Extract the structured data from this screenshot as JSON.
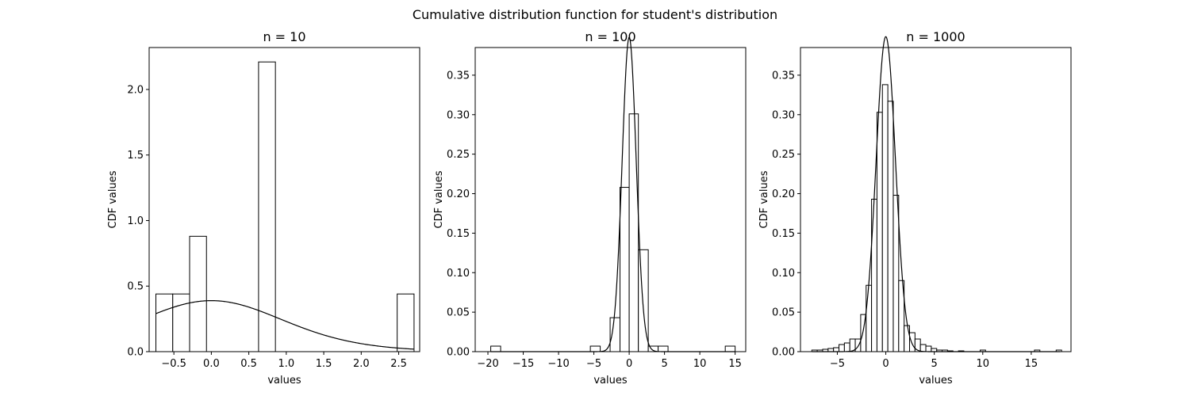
{
  "figure": {
    "title": "Cumulative distribution function for student's distribution"
  },
  "chart_data": [
    {
      "type": "bar",
      "title": "n = 10",
      "xlabel": "values",
      "ylabel": "CDF values",
      "xlim": [
        -0.83,
        2.78
      ],
      "ylim": [
        0,
        2.32
      ],
      "xticks": [
        -0.5,
        0.0,
        0.5,
        1.0,
        1.5,
        2.0,
        2.5
      ],
      "xtick_labels": [
        "−0.5",
        "0.0",
        "0.5",
        "1.0",
        "1.5",
        "2.0",
        "2.5"
      ],
      "yticks": [
        0.0,
        0.5,
        1.0,
        1.5,
        2.0
      ],
      "ytick_labels": [
        "0.0",
        "0.5",
        "1.0",
        "1.5",
        "2.0"
      ],
      "bins": [
        {
          "x0": -0.74,
          "x1": -0.515,
          "height": 0.44
        },
        {
          "x0": -0.515,
          "x1": -0.29,
          "height": 0.44
        },
        {
          "x0": -0.29,
          "x1": -0.065,
          "height": 0.88
        },
        {
          "x0": 0.63,
          "x1": 0.855,
          "height": 2.21
        },
        {
          "x0": 2.48,
          "x1": 2.705,
          "height": 0.44
        }
      ],
      "curve": {
        "dist": "student_t",
        "df": 10,
        "x_range": [
          -0.74,
          2.7
        ]
      }
    },
    {
      "type": "bar",
      "title": "n = 100",
      "xlabel": "values",
      "ylabel": "CDF values",
      "xlim": [
        -21.8,
        16.5
      ],
      "ylim": [
        0,
        0.385
      ],
      "xticks": [
        -20,
        -15,
        -10,
        -5,
        0,
        5,
        10,
        15
      ],
      "xtick_labels": [
        "−20",
        "−15",
        "−10",
        "−5",
        "0",
        "5",
        "10",
        "15"
      ],
      "yticks": [
        0.0,
        0.05,
        0.1,
        0.15,
        0.2,
        0.25,
        0.3,
        0.35
      ],
      "ytick_labels": [
        "0.00",
        "0.05",
        "0.10",
        "0.15",
        "0.20",
        "0.25",
        "0.30",
        "0.35"
      ],
      "bins": [
        {
          "x0": -19.6,
          "x1": -18.2,
          "height": 0.007
        },
        {
          "x0": -5.5,
          "x1": -4.1,
          "height": 0.007
        },
        {
          "x0": -4.1,
          "x1": -2.7,
          "height": 0.0
        },
        {
          "x0": -2.7,
          "x1": -1.3,
          "height": 0.043
        },
        {
          "x0": -1.3,
          "x1": 0.0,
          "height": 0.208
        },
        {
          "x0": 0.0,
          "x1": 1.3,
          "height": 0.301
        },
        {
          "x0": 1.3,
          "x1": 2.7,
          "height": 0.129
        },
        {
          "x0": 2.7,
          "x1": 4.1,
          "height": 0.007
        },
        {
          "x0": 4.1,
          "x1": 5.5,
          "height": 0.007
        },
        {
          "x0": 13.6,
          "x1": 15.0,
          "height": 0.007
        }
      ],
      "curve": {
        "dist": "student_t",
        "df": 100,
        "x_range": [
          -19.6,
          15.0
        ]
      }
    },
    {
      "type": "bar",
      "title": "n = 1000",
      "xlabel": "values",
      "ylabel": "CDF values",
      "xlim": [
        -8.8,
        19.1
      ],
      "ylim": [
        0,
        0.385
      ],
      "xticks": [
        -5,
        0,
        5,
        10,
        15
      ],
      "xtick_labels": [
        "−5",
        "0",
        "5",
        "10",
        "15"
      ],
      "yticks": [
        0.0,
        0.05,
        0.1,
        0.15,
        0.2,
        0.25,
        0.3,
        0.35
      ],
      "ytick_labels": [
        "0.00",
        "0.05",
        "0.10",
        "0.15",
        "0.20",
        "0.25",
        "0.30",
        "0.35"
      ],
      "bins": [
        {
          "x0": -7.63,
          "x1": -7.07,
          "height": 0.002
        },
        {
          "x0": -7.07,
          "x1": -6.51,
          "height": 0.002
        },
        {
          "x0": -6.51,
          "x1": -5.95,
          "height": 0.003
        },
        {
          "x0": -5.95,
          "x1": -5.39,
          "height": 0.004
        },
        {
          "x0": -5.39,
          "x1": -4.83,
          "height": 0.005
        },
        {
          "x0": -4.83,
          "x1": -4.27,
          "height": 0.009
        },
        {
          "x0": -4.27,
          "x1": -3.71,
          "height": 0.011
        },
        {
          "x0": -3.71,
          "x1": -3.15,
          "height": 0.016
        },
        {
          "x0": -3.15,
          "x1": -2.59,
          "height": 0.016
        },
        {
          "x0": -2.59,
          "x1": -2.03,
          "height": 0.047
        },
        {
          "x0": -2.03,
          "x1": -1.47,
          "height": 0.084
        },
        {
          "x0": -1.47,
          "x1": -0.91,
          "height": 0.193
        },
        {
          "x0": -0.91,
          "x1": -0.35,
          "height": 0.303
        },
        {
          "x0": -0.35,
          "x1": 0.21,
          "height": 0.338
        },
        {
          "x0": 0.21,
          "x1": 0.77,
          "height": 0.317
        },
        {
          "x0": 0.77,
          "x1": 1.33,
          "height": 0.198
        },
        {
          "x0": 1.33,
          "x1": 1.89,
          "height": 0.09
        },
        {
          "x0": 1.89,
          "x1": 2.45,
          "height": 0.033
        },
        {
          "x0": 2.45,
          "x1": 3.01,
          "height": 0.024
        },
        {
          "x0": 3.01,
          "x1": 3.57,
          "height": 0.016
        },
        {
          "x0": 3.57,
          "x1": 4.13,
          "height": 0.009
        },
        {
          "x0": 4.13,
          "x1": 4.69,
          "height": 0.007
        },
        {
          "x0": 4.69,
          "x1": 5.25,
          "height": 0.004
        },
        {
          "x0": 5.25,
          "x1": 5.81,
          "height": 0.002
        },
        {
          "x0": 5.81,
          "x1": 6.37,
          "height": 0.002
        },
        {
          "x0": 6.37,
          "x1": 6.93,
          "height": 0.001
        },
        {
          "x0": 7.49,
          "x1": 8.05,
          "height": 0.001
        },
        {
          "x0": 9.73,
          "x1": 10.29,
          "height": 0.002
        },
        {
          "x0": 15.33,
          "x1": 15.89,
          "height": 0.002
        },
        {
          "x0": 17.57,
          "x1": 18.13,
          "height": 0.002
        }
      ],
      "curve": {
        "dist": "student_t",
        "df": 1000,
        "x_range": [
          -7.6,
          18.0
        ]
      }
    }
  ]
}
